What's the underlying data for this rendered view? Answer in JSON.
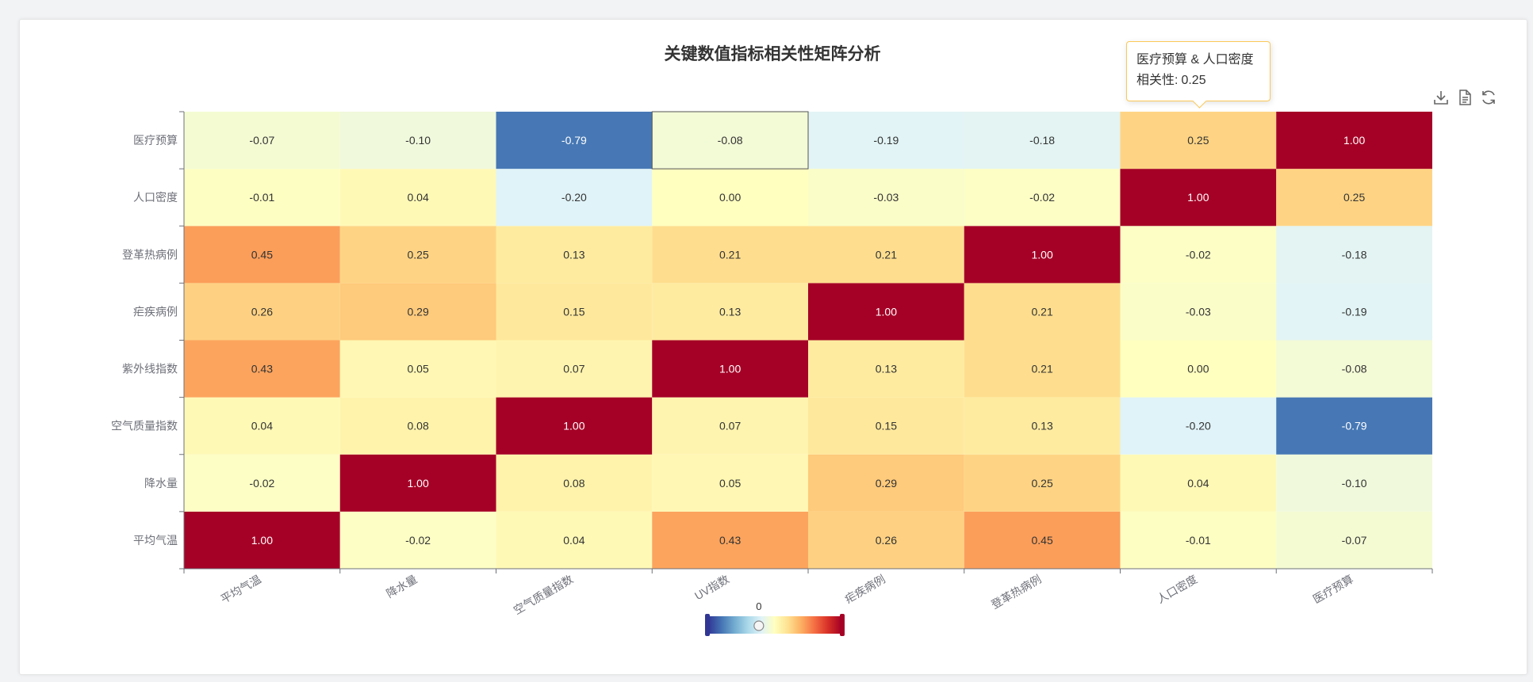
{
  "chart_data": {
    "type": "heatmap",
    "title": "关键数值指标相关性矩阵分析",
    "x_categories": [
      "平均气温",
      "降水量",
      "空气质量指数",
      "UV指数",
      "疟疾病例",
      "登革热病例",
      "人口密度",
      "医疗预算"
    ],
    "y_categories": [
      "平均气温",
      "降水量",
      "空气质量指数",
      "紫外线指数",
      "疟疾病例",
      "登革热病例",
      "人口密度",
      "医疗预算"
    ],
    "values_by_row": [
      [
        1.0,
        -0.02,
        0.04,
        0.43,
        0.26,
        0.45,
        -0.01,
        -0.07
      ],
      [
        -0.02,
        1.0,
        0.08,
        0.05,
        0.29,
        0.25,
        0.04,
        -0.1
      ],
      [
        0.04,
        0.08,
        1.0,
        0.07,
        0.15,
        0.13,
        -0.2,
        -0.79
      ],
      [
        0.43,
        0.05,
        0.07,
        1.0,
        0.13,
        0.21,
        0.0,
        -0.08
      ],
      [
        0.26,
        0.29,
        0.15,
        0.13,
        1.0,
        0.21,
        -0.03,
        -0.19
      ],
      [
        0.45,
        0.25,
        0.13,
        0.21,
        0.21,
        1.0,
        -0.02,
        -0.18
      ],
      [
        -0.01,
        0.04,
        -0.2,
        0.0,
        -0.03,
        -0.02,
        1.0,
        0.25
      ],
      [
        -0.07,
        -0.1,
        -0.79,
        -0.08,
        -0.19,
        -0.18,
        0.25,
        1.0
      ]
    ],
    "value_range": [
      -1,
      1
    ],
    "colormap": [
      "#313695",
      "#4575b4",
      "#74add1",
      "#abd9e9",
      "#e0f3f8",
      "#ffffbf",
      "#fee090",
      "#fdae61",
      "#f46d43",
      "#d73027",
      "#a50026"
    ],
    "visual_map": {
      "label": "0",
      "orientation": "horizontal",
      "placement": "bottom-center"
    },
    "highlighted_cell": {
      "x": "UV指数",
      "y": "医疗预算"
    }
  },
  "tooltip": {
    "line1": "医疗预算 & 人口密度",
    "label": "相关性:",
    "value": "0.25"
  },
  "toolbox": {
    "items": [
      "download-icon",
      "data-view-icon",
      "refresh-icon"
    ]
  }
}
